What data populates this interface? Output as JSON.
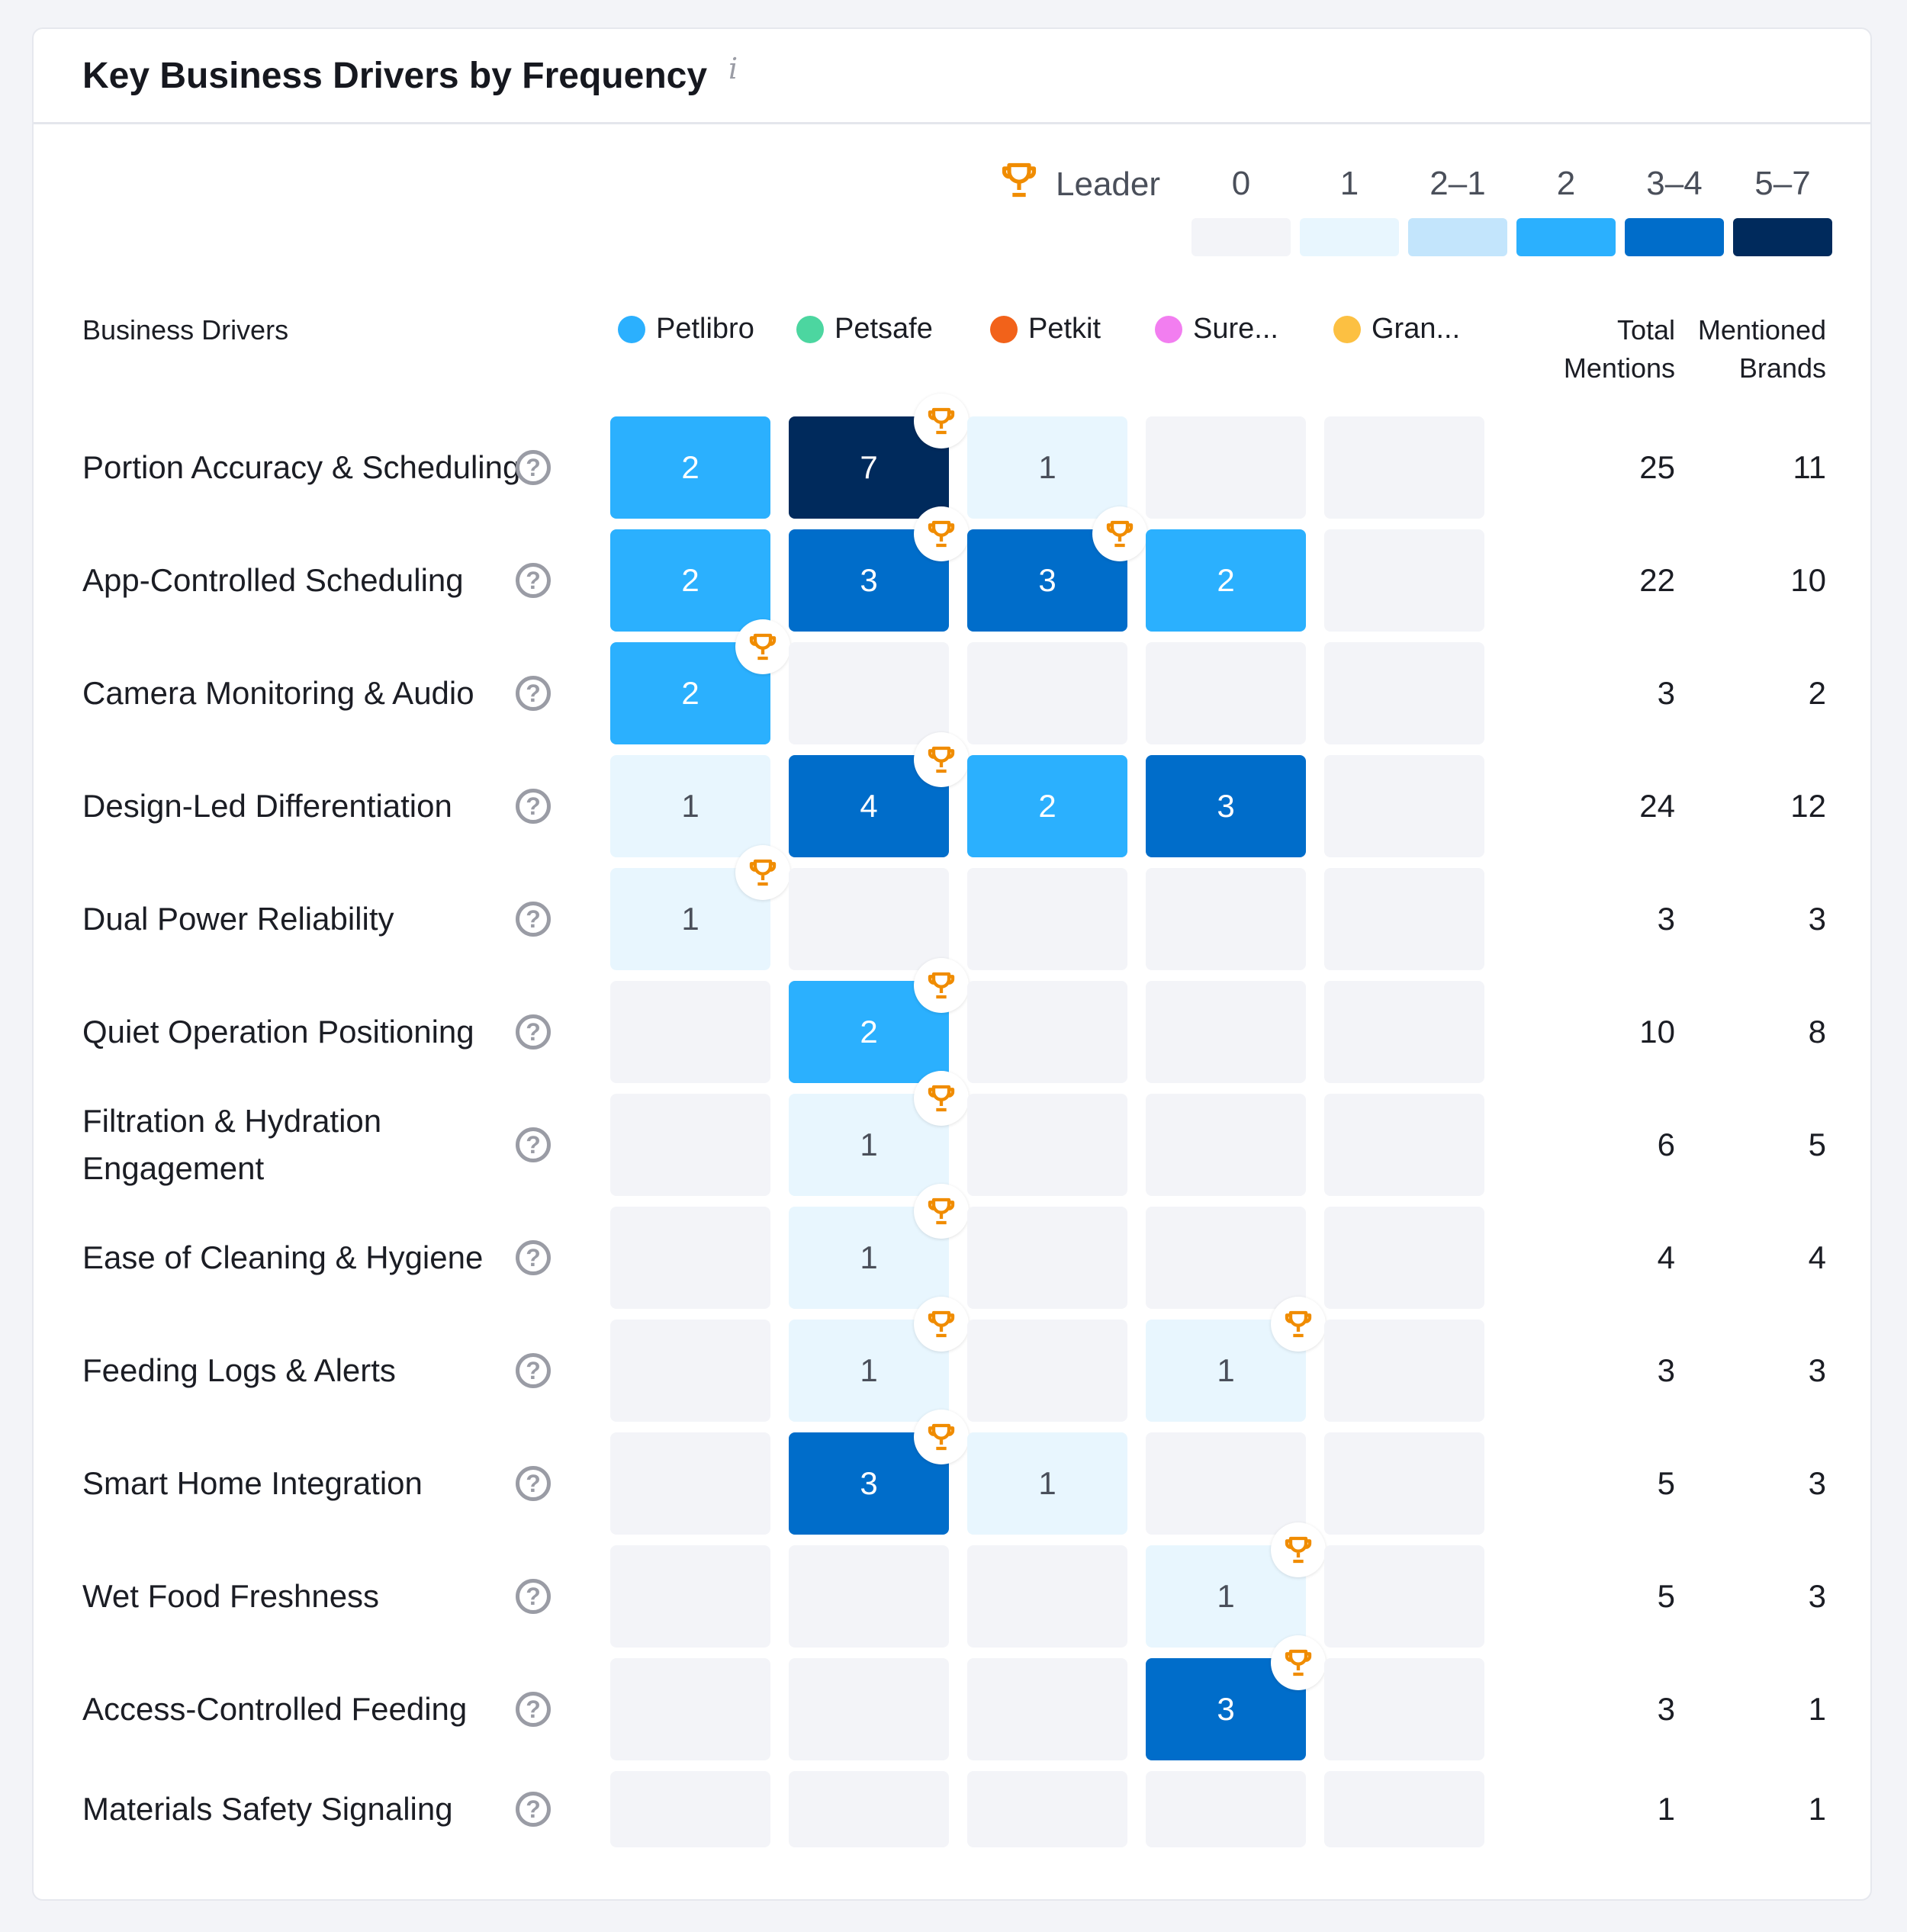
{
  "title": "Key Business Drivers by Frequency",
  "info_icon": "info-icon",
  "legend": {
    "leader_label": "Leader",
    "scale": [
      {
        "label": "0",
        "color": "#f3f4f8"
      },
      {
        "label": "1",
        "color": "#e8f6fe"
      },
      {
        "label": "2–1",
        "color": "#c3e5fc"
      },
      {
        "label": "2",
        "color": "#2bb0fe"
      },
      {
        "label": "3–4",
        "color": "#006dca"
      },
      {
        "label": "5–7",
        "color": "#002a5c"
      }
    ]
  },
  "columns": {
    "driver_header": "Business Drivers",
    "total_header_1": "Total",
    "total_header_2": "Mentions",
    "brands_header_1": "Mentioned",
    "brands_header_2": "Brands",
    "brands": [
      {
        "name": "Petlibro",
        "color": "#2bb0fe"
      },
      {
        "name": "Petsafe",
        "color": "#4cd6a0"
      },
      {
        "name": "Petkit",
        "color": "#f2621a"
      },
      {
        "name": "Sure...",
        "color": "#f27ef0"
      },
      {
        "name": "Gran...",
        "color": "#fcc042"
      }
    ]
  },
  "rows": [
    {
      "driver": "Portion Accuracy & Scheduling",
      "values": [
        2,
        7,
        1,
        0,
        0
      ],
      "leaders": [
        1
      ],
      "total": "25",
      "brands": "11"
    },
    {
      "driver": "App-Controlled Scheduling",
      "values": [
        2,
        3,
        3,
        2,
        0
      ],
      "leaders": [
        1,
        2
      ],
      "total": "22",
      "brands": "10"
    },
    {
      "driver": "Camera Monitoring & Audio",
      "values": [
        2,
        0,
        0,
        0,
        0
      ],
      "leaders": [
        0
      ],
      "total": "3",
      "brands": "2"
    },
    {
      "driver": "Design-Led Differentiation",
      "values": [
        1,
        4,
        2,
        3,
        0
      ],
      "leaders": [
        1
      ],
      "total": "24",
      "brands": "12"
    },
    {
      "driver": "Dual Power Reliability",
      "values": [
        1,
        0,
        0,
        0,
        0
      ],
      "leaders": [
        0
      ],
      "total": "3",
      "brands": "3"
    },
    {
      "driver": "Quiet Operation Positioning",
      "values": [
        0,
        2,
        0,
        0,
        0
      ],
      "leaders": [
        1
      ],
      "total": "10",
      "brands": "8"
    },
    {
      "driver": "Filtration & Hydration Engagement",
      "values": [
        0,
        1,
        0,
        0,
        0
      ],
      "leaders": [
        1
      ],
      "total": "6",
      "brands": "5"
    },
    {
      "driver": "Ease of Cleaning & Hygiene",
      "values": [
        0,
        1,
        0,
        0,
        0
      ],
      "leaders": [
        1
      ],
      "total": "4",
      "brands": "4"
    },
    {
      "driver": "Feeding Logs & Alerts",
      "values": [
        0,
        1,
        0,
        1,
        0
      ],
      "leaders": [
        1,
        3
      ],
      "total": "3",
      "brands": "3"
    },
    {
      "driver": "Smart Home Integration",
      "values": [
        0,
        3,
        1,
        0,
        0
      ],
      "leaders": [
        1
      ],
      "total": "5",
      "brands": "3"
    },
    {
      "driver": "Wet Food Freshness",
      "values": [
        0,
        0,
        0,
        1,
        0
      ],
      "leaders": [
        3
      ],
      "total": "5",
      "brands": "3"
    },
    {
      "driver": "Access-Controlled Feeding",
      "values": [
        0,
        0,
        0,
        3,
        0
      ],
      "leaders": [
        3
      ],
      "total": "3",
      "brands": "1"
    },
    {
      "driver": "Materials Safety Signaling",
      "values": [
        0,
        0,
        0,
        0,
        0
      ],
      "leaders": [],
      "total": "1",
      "brands": "1"
    }
  ]
}
